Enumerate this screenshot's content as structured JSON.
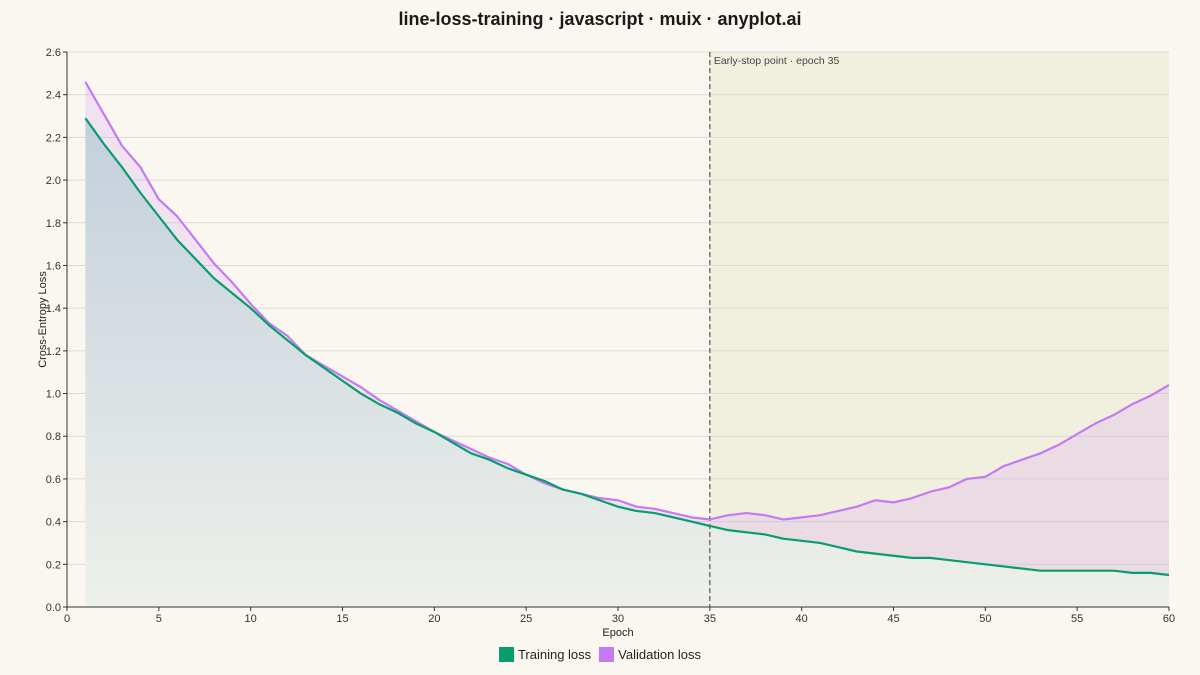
{
  "page": {
    "title": "line-loss-training · javascript · muix · anyplot.ai"
  },
  "colors": {
    "background": "#FAF7F0",
    "train": "#079D6E",
    "val": "#C479F5",
    "grid": "#D9D9D9",
    "axis": "#333333",
    "overfit_region": "#EEEED9",
    "marker": "#555555"
  },
  "chart_data": {
    "type": "line",
    "title": "line-loss-training · javascript · muix · anyplot.ai",
    "xlabel": "Epoch",
    "ylabel": "Cross-Entropy Loss",
    "xlim": [
      0,
      60
    ],
    "ylim": [
      0,
      2.6
    ],
    "xticks": [
      "0",
      "5",
      "10",
      "15",
      "20",
      "25",
      "30",
      "35",
      "40",
      "45",
      "50",
      "55",
      "60"
    ],
    "yticks": [
      "0.0",
      "0.2",
      "0.4",
      "0.6",
      "0.8",
      "1.0",
      "1.2",
      "1.4",
      "1.6",
      "1.8",
      "2.0",
      "2.2",
      "2.4",
      "2.6"
    ],
    "grid": true,
    "legend_position": "bottom",
    "annotation": {
      "x": 35,
      "label": "Early-stop point · epoch 35"
    },
    "x": [
      1,
      2,
      3,
      4,
      5,
      6,
      7,
      8,
      9,
      10,
      11,
      12,
      13,
      14,
      15,
      16,
      17,
      18,
      19,
      20,
      21,
      22,
      23,
      24,
      25,
      26,
      27,
      28,
      29,
      30,
      31,
      32,
      33,
      34,
      35,
      36,
      37,
      38,
      39,
      40,
      41,
      42,
      43,
      44,
      45,
      46,
      47,
      48,
      49,
      50,
      51,
      52,
      53,
      54,
      55,
      56,
      57,
      58,
      59,
      60
    ],
    "series": [
      {
        "name": "Training loss",
        "values": [
          2.29,
          2.17,
          2.06,
          1.94,
          1.83,
          1.72,
          1.63,
          1.54,
          1.47,
          1.4,
          1.32,
          1.25,
          1.18,
          1.12,
          1.06,
          1.0,
          0.95,
          0.91,
          0.86,
          0.82,
          0.77,
          0.72,
          0.69,
          0.65,
          0.62,
          0.59,
          0.55,
          0.53,
          0.5,
          0.47,
          0.45,
          0.44,
          0.42,
          0.4,
          0.38,
          0.36,
          0.35,
          0.34,
          0.32,
          0.31,
          0.3,
          0.28,
          0.26,
          0.25,
          0.24,
          0.23,
          0.23,
          0.22,
          0.21,
          0.2,
          0.19,
          0.18,
          0.17,
          0.17,
          0.17,
          0.17,
          0.17,
          0.16,
          0.16,
          0.15
        ]
      },
      {
        "name": "Validation loss",
        "values": [
          2.46,
          2.31,
          2.16,
          2.06,
          1.91,
          1.83,
          1.72,
          1.61,
          1.52,
          1.42,
          1.33,
          1.27,
          1.18,
          1.13,
          1.08,
          1.03,
          0.97,
          0.92,
          0.87,
          0.82,
          0.78,
          0.74,
          0.7,
          0.67,
          0.62,
          0.58,
          0.55,
          0.53,
          0.51,
          0.5,
          0.47,
          0.46,
          0.44,
          0.42,
          0.41,
          0.43,
          0.44,
          0.43,
          0.41,
          0.42,
          0.43,
          0.45,
          0.47,
          0.5,
          0.49,
          0.51,
          0.54,
          0.56,
          0.6,
          0.61,
          0.66,
          0.69,
          0.72,
          0.76,
          0.81,
          0.86,
          0.9,
          0.95,
          0.99,
          1.04
        ]
      }
    ]
  }
}
